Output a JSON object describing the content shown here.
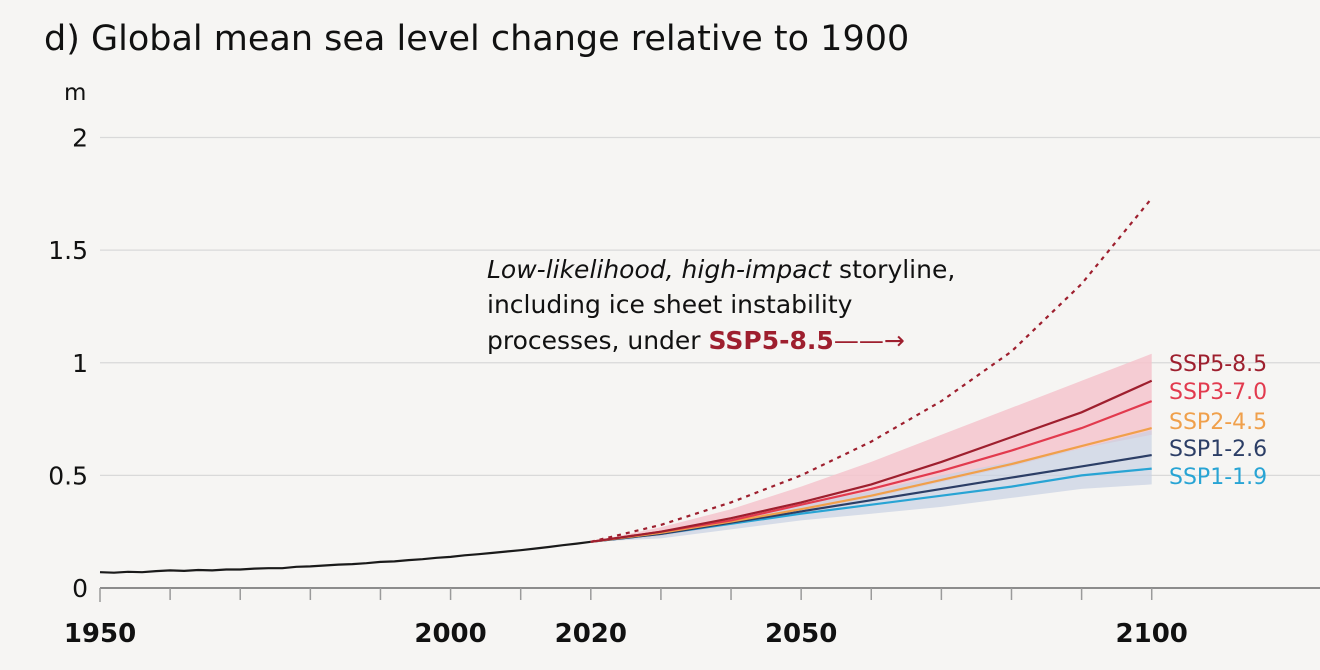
{
  "chart_data": {
    "type": "line",
    "title": "d) Global mean sea level change relative to 1900",
    "ylabel": "m",
    "xlim": [
      1950,
      2124
    ],
    "ylim": [
      0,
      2.1
    ],
    "yticks": [
      {
        "value": 0,
        "label": "0"
      },
      {
        "value": 0.5,
        "label": "0.5"
      },
      {
        "value": 1,
        "label": "1"
      },
      {
        "value": 1.5,
        "label": "1.5"
      },
      {
        "value": 2,
        "label": "2"
      }
    ],
    "xtick_labels": [
      {
        "value": 1950,
        "label": "1950"
      },
      {
        "value": 2000,
        "label": "2000"
      },
      {
        "value": 2020,
        "label": "2020"
      },
      {
        "value": 2050,
        "label": "2050"
      },
      {
        "value": 2100,
        "label": "2100"
      }
    ],
    "xminor_ticks": [
      1960,
      1970,
      1980,
      1990,
      2000,
      2010,
      2020,
      2030,
      2040,
      2050,
      2060,
      2070,
      2080,
      2090,
      2100
    ],
    "grid": true,
    "observed": {
      "color": "#1a1a1a",
      "x": [
        1950,
        1952,
        1954,
        1956,
        1958,
        1960,
        1962,
        1964,
        1966,
        1968,
        1970,
        1972,
        1974,
        1976,
        1978,
        1980,
        1982,
        1984,
        1986,
        1988,
        1990,
        1992,
        1994,
        1996,
        1998,
        2000,
        2002,
        2004,
        2006,
        2008,
        2010,
        2012,
        2014,
        2016,
        2018,
        2020
      ],
      "y": [
        0.07,
        0.068,
        0.072,
        0.07,
        0.075,
        0.078,
        0.076,
        0.08,
        0.078,
        0.082,
        0.082,
        0.086,
        0.088,
        0.088,
        0.094,
        0.096,
        0.1,
        0.104,
        0.106,
        0.11,
        0.116,
        0.118,
        0.124,
        0.128,
        0.134,
        0.138,
        0.145,
        0.15,
        0.156,
        0.162,
        0.168,
        0.175,
        0.182,
        0.19,
        0.197,
        0.205
      ]
    },
    "series": [
      {
        "name": "SSP5-8.5",
        "color": "#9e1f2e",
        "x": [
          2020,
          2030,
          2040,
          2050,
          2060,
          2070,
          2080,
          2090,
          2100
        ],
        "y": [
          0.205,
          0.25,
          0.31,
          0.38,
          0.46,
          0.56,
          0.67,
          0.78,
          0.92
        ],
        "band_low": [
          0.205,
          0.23,
          0.28,
          0.34,
          0.4,
          0.47,
          0.54,
          0.62,
          0.68
        ],
        "band_high": [
          0.205,
          0.27,
          0.35,
          0.45,
          0.56,
          0.68,
          0.8,
          0.92,
          1.04
        ]
      },
      {
        "name": "SSP3-7.0",
        "color": "#e23a4e",
        "x": [
          2020,
          2030,
          2040,
          2050,
          2060,
          2070,
          2080,
          2090,
          2100
        ],
        "y": [
          0.205,
          0.25,
          0.3,
          0.37,
          0.44,
          0.52,
          0.61,
          0.71,
          0.83
        ]
      },
      {
        "name": "SSP2-4.5",
        "color": "#f0a04b",
        "x": [
          2020,
          2030,
          2040,
          2050,
          2060,
          2070,
          2080,
          2090,
          2100
        ],
        "y": [
          0.205,
          0.245,
          0.295,
          0.35,
          0.41,
          0.48,
          0.55,
          0.63,
          0.71
        ]
      },
      {
        "name": "SSP1-2.6",
        "color": "#2c3e66",
        "x": [
          2020,
          2030,
          2040,
          2050,
          2060,
          2070,
          2080,
          2090,
          2100
        ],
        "y": [
          0.205,
          0.24,
          0.29,
          0.34,
          0.39,
          0.44,
          0.49,
          0.54,
          0.59
        ],
        "band_low": [
          0.205,
          0.22,
          0.26,
          0.3,
          0.33,
          0.36,
          0.4,
          0.44,
          0.46
        ],
        "band_high": [
          0.205,
          0.25,
          0.31,
          0.37,
          0.43,
          0.5,
          0.56,
          0.62,
          0.7
        ]
      },
      {
        "name": "SSP1-1.9",
        "color": "#28a4d4",
        "x": [
          2020,
          2030,
          2040,
          2050,
          2060,
          2070,
          2080,
          2090,
          2100
        ],
        "y": [
          0.205,
          0.24,
          0.285,
          0.33,
          0.37,
          0.41,
          0.45,
          0.5,
          0.53
        ]
      }
    ],
    "storyline": {
      "color": "#9e1f2e",
      "style": "dotted",
      "x": [
        2020,
        2030,
        2040,
        2050,
        2060,
        2070,
        2080,
        2090,
        2100
      ],
      "y": [
        0.205,
        0.28,
        0.38,
        0.5,
        0.65,
        0.83,
        1.05,
        1.35,
        1.73
      ]
    },
    "annotation": {
      "line1_italic": "Low-likelihood, high-impact",
      "line1_rest": " storyline,",
      "line2": "including ice sheet instability",
      "line3": "processes, under ",
      "line3_bold": "SSP5-8.5",
      "arrow": "——→"
    },
    "colors": {
      "band_red": "#f4c4cc",
      "band_blue": "#c9d2e3"
    }
  }
}
